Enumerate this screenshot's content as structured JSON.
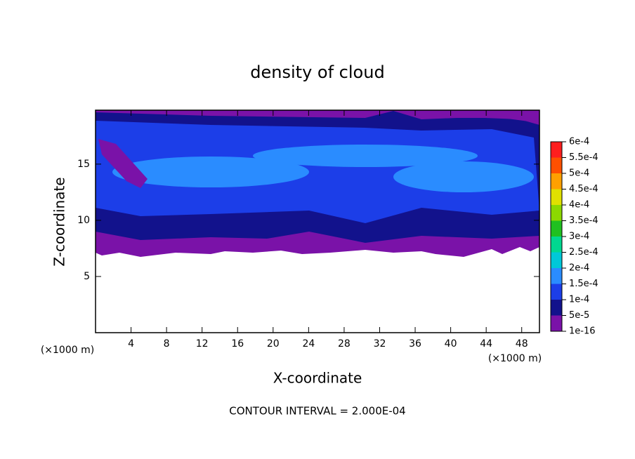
{
  "chart_data": {
    "type": "contour",
    "title": "density of cloud",
    "xlabel": "X-coordinate",
    "ylabel": "Z-coordinate",
    "xunit": "(×1000 m)",
    "yunit": "(×1000 m)",
    "annotation": "CONTOUR INTERVAL = 2.000E-04",
    "xlim": [
      0,
      50
    ],
    "xticks": [
      4,
      8,
      12,
      16,
      20,
      24,
      28,
      32,
      36,
      40,
      44,
      48
    ],
    "ylim": [
      0,
      19.8
    ],
    "yticks": [
      5,
      10,
      15
    ],
    "colorbar": {
      "levels": [
        {
          "value": 1e-16,
          "label": "1e-16"
        },
        {
          "value": 5e-05,
          "label": "5e-5"
        },
        {
          "value": 0.0001,
          "label": "1e-4"
        },
        {
          "value": 0.00015,
          "label": "1.5e-4"
        },
        {
          "value": 0.0002,
          "label": "2e-4"
        },
        {
          "value": 0.00025,
          "label": "2.5e-4"
        },
        {
          "value": 0.0003,
          "label": "3e-4"
        },
        {
          "value": 0.00035,
          "label": "3.5e-4"
        },
        {
          "value": 0.0004,
          "label": "4e-4"
        },
        {
          "value": 0.00045,
          "label": "4.5e-4"
        },
        {
          "value": 0.0005,
          "label": "5e-4"
        },
        {
          "value": 0.00055,
          "label": "5.5e-4"
        },
        {
          "value": 0.0006,
          "label": "6e-4"
        }
      ],
      "colors": [
        "#7a12a8",
        "#12128c",
        "#1c3ee8",
        "#2a8cff",
        "#00c8d8",
        "#00d890",
        "#20c020",
        "#8cd800",
        "#e0e000",
        "#ffa000",
        "#ff5000",
        "#ff1e1e",
        "#ff8c8c"
      ]
    }
  }
}
